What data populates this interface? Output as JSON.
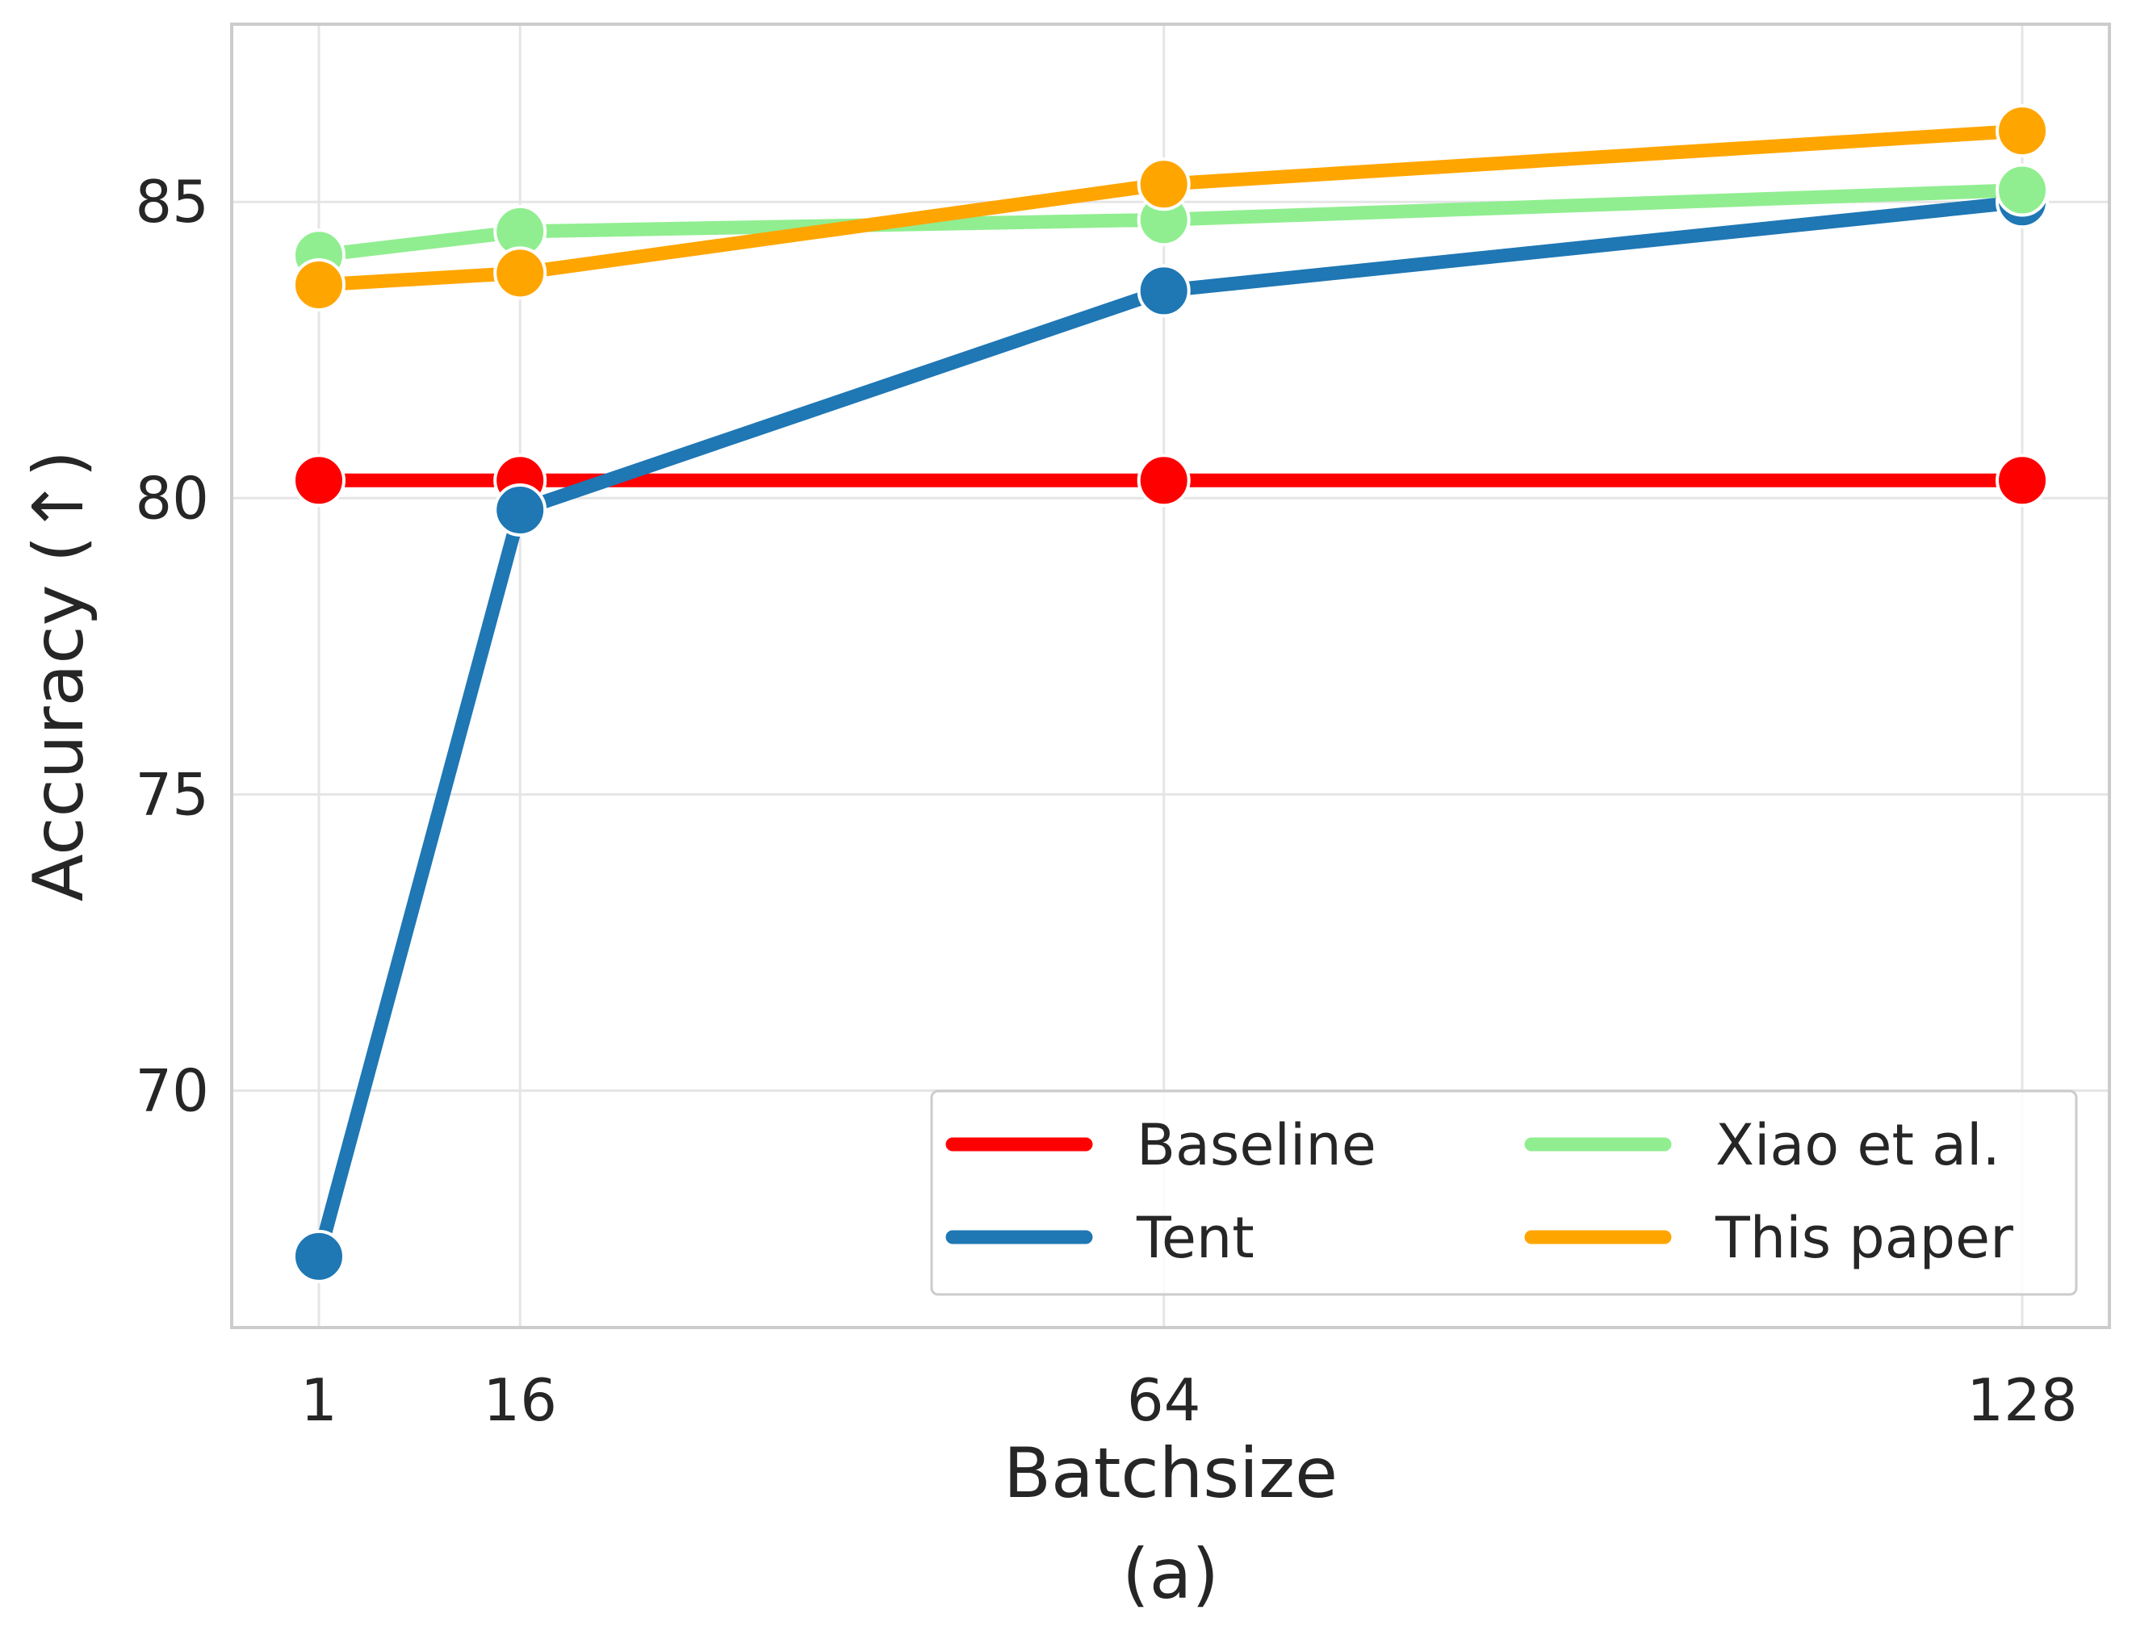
{
  "caption": "(a)",
  "chart_data": {
    "type": "line",
    "title": "",
    "xlabel": "Batchsize",
    "ylabel": "Accuracy (↑)",
    "x": [
      1,
      16,
      64,
      128
    ],
    "x_tick_labels": [
      "1",
      "16",
      "64",
      "128"
    ],
    "xlim": [
      -5.5,
      134.5
    ],
    "ylim": [
      66,
      88
    ],
    "y_ticks": [
      70,
      75,
      80,
      85
    ],
    "y_tick_labels": [
      "70",
      "75",
      "80",
      "85"
    ],
    "grid": true,
    "legend_position": "lower-right",
    "legend_columns": 2,
    "series": [
      {
        "name": "Baseline",
        "color": "#ff0000",
        "values": [
          80.3,
          80.3,
          80.3,
          80.3
        ]
      },
      {
        "name": "Tent",
        "color": "#1f77b4",
        "values": [
          67.2,
          79.8,
          83.5,
          85.0
        ]
      },
      {
        "name": "Xiao et al.",
        "color": "#90ee90",
        "values": [
          84.1,
          84.5,
          84.7,
          85.2
        ]
      },
      {
        "name": "This paper",
        "color": "#ffa500",
        "values": [
          83.6,
          83.8,
          85.3,
          86.2
        ]
      }
    ]
  }
}
